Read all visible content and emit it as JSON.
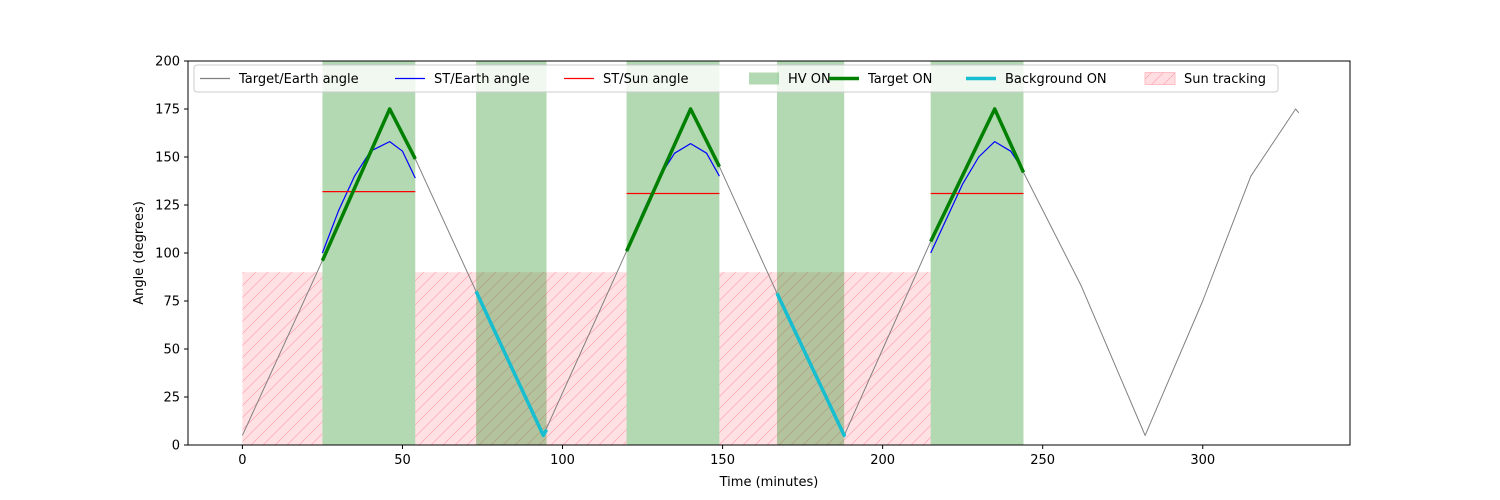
{
  "chart_data": {
    "type": "line",
    "title": "",
    "xlabel": "Time (minutes)",
    "ylabel": "Angle (degrees)",
    "xlim": [
      -17,
      346
    ],
    "ylim": [
      0,
      200
    ],
    "xticks": [
      0,
      50,
      100,
      150,
      200,
      250,
      300
    ],
    "yticks": [
      0,
      25,
      50,
      75,
      100,
      125,
      150,
      175,
      200
    ],
    "grid": false,
    "legend_position": "top",
    "legend": [
      {
        "label": "Target/Earth angle",
        "kind": "line",
        "color": "#808080"
      },
      {
        "label": "ST/Earth angle",
        "kind": "line",
        "color": "#0000ff"
      },
      {
        "label": "ST/Sun angle",
        "kind": "line",
        "color": "#ff0000"
      },
      {
        "label": "HV ON",
        "kind": "patch",
        "color": "#b2d8b2"
      },
      {
        "label": "Target ON",
        "kind": "thickline",
        "color": "#008000"
      },
      {
        "label": "Background ON",
        "kind": "thickline",
        "color": "#17becf"
      },
      {
        "label": "Sun tracking",
        "kind": "hatch",
        "color": "#ffdde0"
      }
    ],
    "series": [
      {
        "name": "Target/Earth angle",
        "color": "#808080",
        "x": [
          0,
          25,
          46,
          54,
          73,
          94,
          120,
          140,
          149,
          167,
          188,
          215,
          235,
          244,
          262,
          282,
          300,
          315,
          329,
          330
        ],
        "y": [
          5,
          96,
          175,
          149,
          80,
          5,
          101,
          175,
          145,
          79,
          5,
          106,
          175,
          142,
          83,
          5,
          75,
          140,
          175,
          173
        ]
      },
      {
        "name": "ST/Earth angle",
        "color": "#0000ff",
        "segments": [
          {
            "x": [
              25,
              30,
              35,
              40,
              46,
              50,
              54
            ],
            "y": [
              100,
              122,
              140,
              153,
              158,
              153,
              139
            ]
          },
          {
            "x": [
              120,
              125,
              130,
              135,
              140,
              145,
              149
            ],
            "y": [
              101,
              121,
              139,
              152,
              157,
              152,
              140
            ]
          },
          {
            "x": [
              215,
              220,
              225,
              230,
              235,
              240,
              244
            ],
            "y": [
              100,
              118,
              136,
              150,
              158,
              153,
              143
            ]
          }
        ]
      },
      {
        "name": "ST/Sun angle",
        "color": "#ff0000",
        "segments": [
          {
            "x": [
              25,
              54
            ],
            "y": [
              132,
              132
            ]
          },
          {
            "x": [
              120,
              149
            ],
            "y": [
              131,
              131
            ]
          },
          {
            "x": [
              215,
              244
            ],
            "y": [
              131,
              131
            ]
          }
        ]
      },
      {
        "name": "Target ON",
        "color": "#008000",
        "segments": [
          {
            "x": [
              25,
              46,
              54
            ],
            "y": [
              96,
              175,
              149
            ]
          },
          {
            "x": [
              120,
              140,
              149
            ],
            "y": [
              101,
              175,
              145
            ]
          },
          {
            "x": [
              215,
              235,
              244
            ],
            "y": [
              106,
              175,
              142
            ]
          }
        ]
      },
      {
        "name": "Background ON",
        "color": "#17becf",
        "segments": [
          {
            "x": [
              73,
              94,
              95
            ],
            "y": [
              80,
              5,
              8
            ]
          },
          {
            "x": [
              167,
              188,
              188
            ],
            "y": [
              79,
              5,
              6
            ]
          }
        ]
      }
    ],
    "hv_on_spans": [
      [
        25,
        54
      ],
      [
        73,
        95
      ],
      [
        120,
        149
      ],
      [
        167,
        188
      ],
      [
        215,
        244
      ]
    ],
    "sun_tracking_spans": [
      {
        "x": [
          0,
          25
        ],
        "y": [
          0,
          90
        ]
      },
      {
        "x": [
          54,
          120
        ],
        "y": [
          0,
          90
        ]
      },
      {
        "x": [
          149,
          215
        ],
        "y": [
          0,
          90
        ]
      }
    ]
  }
}
